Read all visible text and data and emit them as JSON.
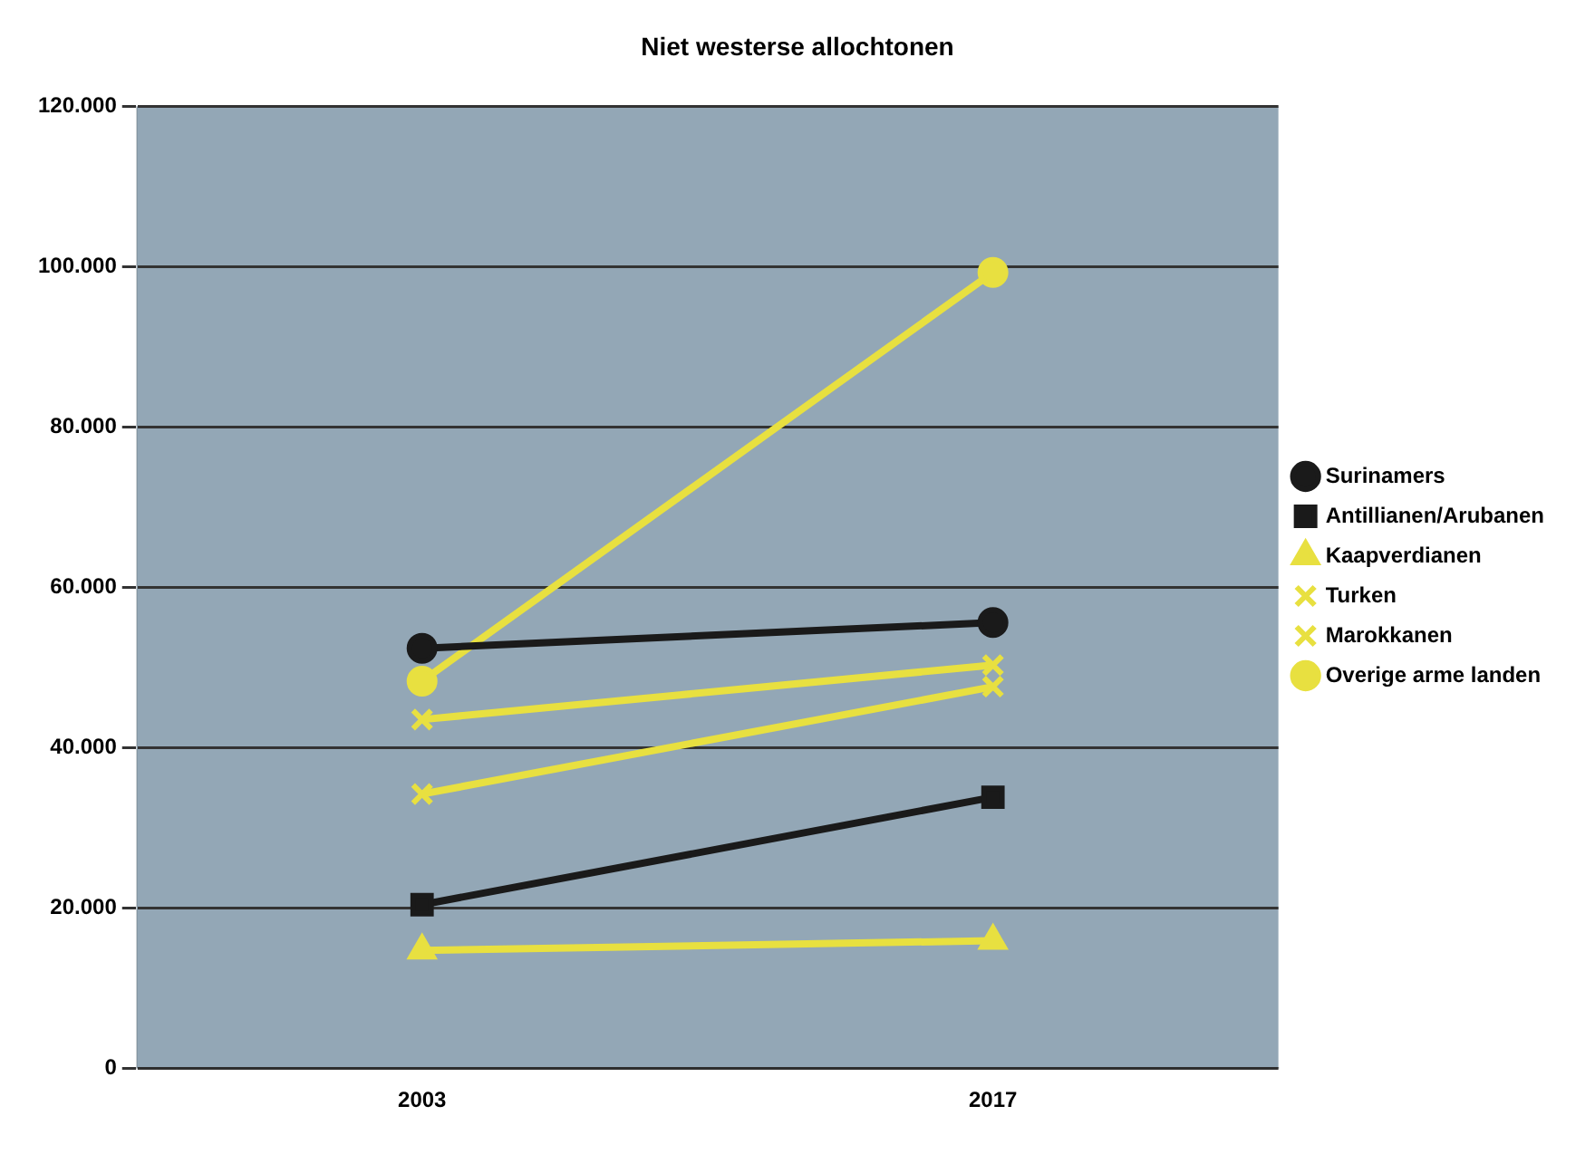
{
  "chart_data": {
    "type": "line",
    "title": "Niet westerse allochtonen",
    "categories": [
      "2003",
      "2017"
    ],
    "series": [
      {
        "name": "Surinamers",
        "color": "#1a1a1a",
        "marker": "circle",
        "values": [
          52400,
          55600
        ]
      },
      {
        "name": "Antillianen/Arubanen",
        "color": "#1a1a1a",
        "marker": "square",
        "values": [
          20400,
          33800
        ]
      },
      {
        "name": "Kaapverdianen",
        "color": "#e8e040",
        "marker": "triangle",
        "values": [
          14700,
          15900
        ]
      },
      {
        "name": "Turken",
        "color": "#e8e040",
        "marker": "cross",
        "values": [
          43500,
          50300
        ]
      },
      {
        "name": "Marokkanen",
        "color": "#e8e040",
        "marker": "cross",
        "values": [
          34200,
          47600
        ]
      },
      {
        "name": "Overige arme landen",
        "color": "#e8e040",
        "marker": "circle",
        "values": [
          48300,
          99300
        ]
      }
    ],
    "ylim": [
      0,
      120000
    ],
    "yticks": [
      {
        "value": 0,
        "label": "0"
      },
      {
        "value": 20000,
        "label": "20.000"
      },
      {
        "value": 40000,
        "label": "40.000"
      },
      {
        "value": 60000,
        "label": "60.000"
      },
      {
        "value": 80000,
        "label": "80.000"
      },
      {
        "value": 100000,
        "label": "100.000"
      },
      {
        "value": 120000,
        "label": "120.000"
      }
    ],
    "grid": "y",
    "legend": "right",
    "line_style": "solid"
  }
}
